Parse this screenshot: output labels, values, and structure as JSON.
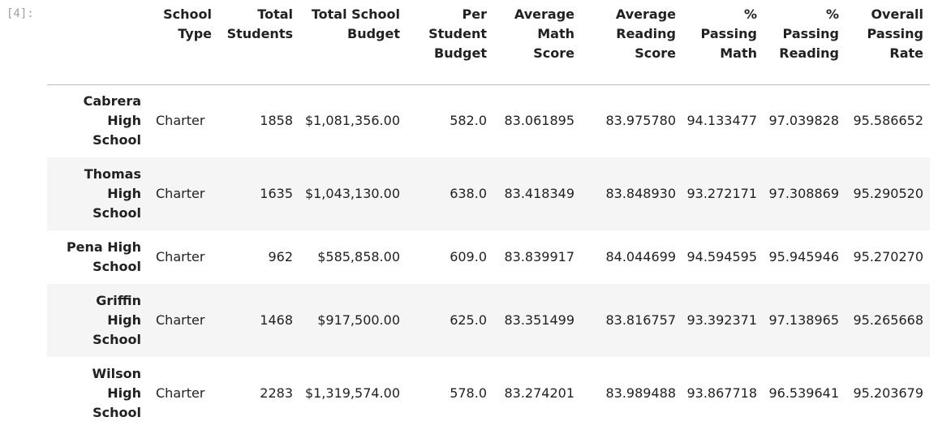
{
  "prompt": "[4]:",
  "columns": [
    "",
    "School Type",
    "Total Students",
    "Total School Budget",
    "Per Student Budget",
    "Average Math Score",
    "Average Reading Score",
    "% Passing Math",
    "% Passing Reading",
    "Overall Passing Rate"
  ],
  "header_lines": [
    [
      ""
    ],
    [
      "School",
      "Type"
    ],
    [
      "Total",
      "Students"
    ],
    [
      "Total School",
      "Budget"
    ],
    [
      "Per",
      "Student",
      "Budget"
    ],
    [
      "Average",
      "Math",
      "Score"
    ],
    [
      "Average",
      "Reading",
      "Score"
    ],
    [
      "%",
      "Passing",
      "Math"
    ],
    [
      "%",
      "Passing",
      "Reading"
    ],
    [
      "Overall",
      "Passing",
      "Rate"
    ]
  ],
  "rows": [
    {
      "index_lines": [
        "Cabrera",
        "High",
        "School"
      ],
      "cells": [
        "Charter",
        "1858",
        "$1,081,356.00",
        "582.0",
        "83.061895",
        "83.975780",
        "94.133477",
        "97.039828",
        "95.586652"
      ]
    },
    {
      "index_lines": [
        "Thomas",
        "High",
        "School"
      ],
      "cells": [
        "Charter",
        "1635",
        "$1,043,130.00",
        "638.0",
        "83.418349",
        "83.848930",
        "93.272171",
        "97.308869",
        "95.290520"
      ]
    },
    {
      "index_lines": [
        "Pena High",
        "School"
      ],
      "cells": [
        "Charter",
        "962",
        "$585,858.00",
        "609.0",
        "83.839917",
        "84.044699",
        "94.594595",
        "95.945946",
        "95.270270"
      ]
    },
    {
      "index_lines": [
        "Griffin",
        "High",
        "School"
      ],
      "cells": [
        "Charter",
        "1468",
        "$917,500.00",
        "625.0",
        "83.351499",
        "83.816757",
        "93.392371",
        "97.138965",
        "95.265668"
      ]
    },
    {
      "index_lines": [
        "Wilson",
        "High",
        "School"
      ],
      "cells": [
        "Charter",
        "2283",
        "$1,319,574.00",
        "578.0",
        "83.274201",
        "83.989488",
        "93.867718",
        "96.539641",
        "95.203679"
      ]
    }
  ]
}
